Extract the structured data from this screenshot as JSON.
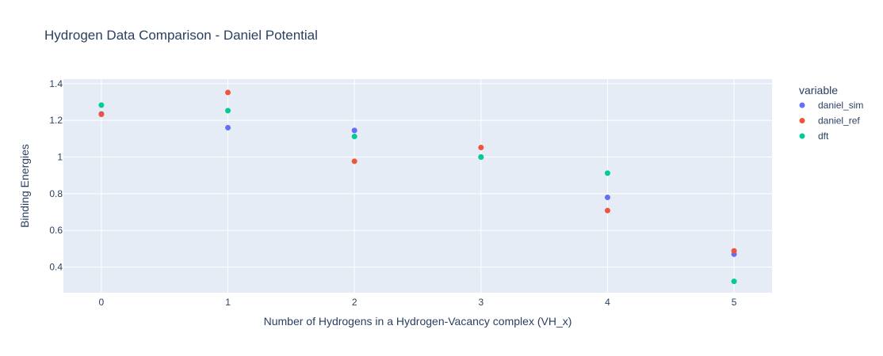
{
  "chart_data": {
    "type": "scatter",
    "title": "Hydrogen Data Comparison - Daniel Potential",
    "xlabel": "Number of Hydrogens in a Hydrogen-Vacancy complex (VH_x)",
    "ylabel": "Binding Energies",
    "x": [
      0,
      1,
      2,
      3,
      4,
      5
    ],
    "xlim": [
      -0.3,
      5.3
    ],
    "ylim": [
      0.26,
      1.425
    ],
    "xticks": [
      0,
      1,
      2,
      3,
      4,
      5
    ],
    "yticks": [
      0.4,
      0.6,
      0.8,
      1,
      1.2,
      1.4
    ],
    "ytick_labels": [
      "0.4",
      "0.6",
      "0.8",
      "1",
      "1.2",
      "1.4"
    ],
    "grid": true,
    "legend": {
      "title": "variable",
      "position": "right"
    },
    "series": [
      {
        "name": "daniel_sim",
        "color": "#636efa",
        "values": [
          1.235,
          1.16,
          1.145,
          1.0,
          0.78,
          0.47
        ]
      },
      {
        "name": "daniel_ref",
        "color": "#ef553b",
        "values": [
          1.233,
          1.352,
          0.977,
          1.052,
          0.708,
          0.488
        ]
      },
      {
        "name": "dft",
        "color": "#00cc96",
        "values": [
          1.283,
          1.253,
          1.112,
          1.0,
          0.912,
          0.322
        ]
      }
    ]
  }
}
